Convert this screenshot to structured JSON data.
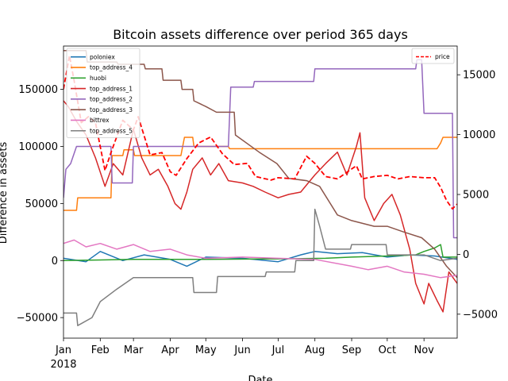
{
  "chart_data": {
    "type": "line",
    "title": "Bitcoin assets difference over period 365 days",
    "xlabel": "Date",
    "ylabel": "Difference in assets",
    "y2label": "",
    "x_range": [
      "2018-01-01",
      "2018-11-29"
    ],
    "ylim": [
      -68000,
      188000
    ],
    "y2lim": [
      -7000,
      17400
    ],
    "grid": false,
    "legend_left_position": "upper-left",
    "legend_right_position": "upper-right",
    "x_ticks": [
      {
        "date": "2018-01-01",
        "label": "Jan",
        "label2": "2018"
      },
      {
        "date": "2018-02-01",
        "label": "Feb",
        "label2": ""
      },
      {
        "date": "2018-03-01",
        "label": "Mar",
        "label2": ""
      },
      {
        "date": "2018-04-01",
        "label": "Apr",
        "label2": ""
      },
      {
        "date": "2018-05-01",
        "label": "May",
        "label2": ""
      },
      {
        "date": "2018-06-01",
        "label": "Jun",
        "label2": ""
      },
      {
        "date": "2018-07-01",
        "label": "Jul",
        "label2": ""
      },
      {
        "date": "2018-08-01",
        "label": "Aug",
        "label2": ""
      },
      {
        "date": "2018-09-01",
        "label": "Sep",
        "label2": ""
      },
      {
        "date": "2018-10-01",
        "label": "Oct",
        "label2": ""
      },
      {
        "date": "2018-11-01",
        "label": "Nov",
        "label2": ""
      }
    ],
    "y_ticks": [
      {
        "value": -50000,
        "label": "−50000"
      },
      {
        "value": 0,
        "label": "0"
      },
      {
        "value": 50000,
        "label": "50000"
      },
      {
        "value": 100000,
        "label": "100000"
      },
      {
        "value": 150000,
        "label": "150000"
      }
    ],
    "y2_ticks": [
      {
        "value": -5000,
        "label": "−5000"
      },
      {
        "value": 0,
        "label": "0"
      },
      {
        "value": 5000,
        "label": "5000"
      },
      {
        "value": 10000,
        "label": "10000"
      },
      {
        "value": 15000,
        "label": "15000"
      }
    ],
    "series": [
      {
        "name": "poloniex",
        "axis": "left",
        "color": "#1f77b4",
        "style": "solid",
        "points": [
          [
            "2018-01-01",
            2000
          ],
          [
            "2018-01-20",
            -1000
          ],
          [
            "2018-02-01",
            8000
          ],
          [
            "2018-02-20",
            0
          ],
          [
            "2018-03-10",
            5000
          ],
          [
            "2018-04-01",
            1000
          ],
          [
            "2018-04-15",
            -5000
          ],
          [
            "2018-05-01",
            3000
          ],
          [
            "2018-06-01",
            2000
          ],
          [
            "2018-07-01",
            -1000
          ],
          [
            "2018-07-20",
            5000
          ],
          [
            "2018-08-01",
            8000
          ],
          [
            "2018-08-20",
            6000
          ],
          [
            "2018-09-10",
            7000
          ],
          [
            "2018-10-01",
            3000
          ],
          [
            "2018-10-20",
            5000
          ],
          [
            "2018-11-10",
            4000
          ],
          [
            "2018-11-29",
            1000
          ]
        ]
      },
      {
        "name": "top_address_4",
        "axis": "left",
        "color": "#ff7f0e",
        "style": "solid",
        "points": [
          [
            "2018-01-01",
            44000
          ],
          [
            "2018-01-12",
            44000
          ],
          [
            "2018-01-13",
            55000
          ],
          [
            "2018-02-10",
            55000
          ],
          [
            "2018-02-11",
            92000
          ],
          [
            "2018-02-20",
            92000
          ],
          [
            "2018-02-21",
            97000
          ],
          [
            "2018-03-01",
            97000
          ],
          [
            "2018-03-02",
            92000
          ],
          [
            "2018-04-10",
            92000
          ],
          [
            "2018-04-13",
            108000
          ],
          [
            "2018-04-20",
            108000
          ],
          [
            "2018-04-21",
            100000
          ],
          [
            "2018-05-20",
            100000
          ],
          [
            "2018-05-21",
            98000
          ],
          [
            "2018-11-12",
            98000
          ],
          [
            "2018-11-15",
            103000
          ],
          [
            "2018-11-17",
            108000
          ],
          [
            "2018-11-29",
            108000
          ]
        ]
      },
      {
        "name": "huobi",
        "axis": "left",
        "color": "#2ca02c",
        "style": "solid",
        "points": [
          [
            "2018-01-01",
            0
          ],
          [
            "2018-03-01",
            1000
          ],
          [
            "2018-05-01",
            1000
          ],
          [
            "2018-07-01",
            1500
          ],
          [
            "2018-08-10",
            2000
          ],
          [
            "2018-09-01",
            3000
          ],
          [
            "2018-10-01",
            4000
          ],
          [
            "2018-10-25",
            5000
          ],
          [
            "2018-11-01",
            8000
          ],
          [
            "2018-11-10",
            11000
          ],
          [
            "2018-11-15",
            14000
          ],
          [
            "2018-11-17",
            3000
          ],
          [
            "2018-11-29",
            3000
          ]
        ]
      },
      {
        "name": "top_address_1",
        "axis": "left",
        "color": "#d62728",
        "style": "solid",
        "points": [
          [
            "2018-01-01",
            140000
          ],
          [
            "2018-01-05",
            135000
          ],
          [
            "2018-01-12",
            122000
          ],
          [
            "2018-01-20",
            110000
          ],
          [
            "2018-01-28",
            90000
          ],
          [
            "2018-02-05",
            65000
          ],
          [
            "2018-02-12",
            85000
          ],
          [
            "2018-02-20",
            75000
          ],
          [
            "2018-03-01",
            115000
          ],
          [
            "2018-03-08",
            90000
          ],
          [
            "2018-03-15",
            75000
          ],
          [
            "2018-03-22",
            80000
          ],
          [
            "2018-03-30",
            65000
          ],
          [
            "2018-04-05",
            50000
          ],
          [
            "2018-04-10",
            45000
          ],
          [
            "2018-04-15",
            60000
          ],
          [
            "2018-04-20",
            80000
          ],
          [
            "2018-04-28",
            90000
          ],
          [
            "2018-05-05",
            75000
          ],
          [
            "2018-05-12",
            85000
          ],
          [
            "2018-05-20",
            70000
          ],
          [
            "2018-06-01",
            68000
          ],
          [
            "2018-06-10",
            65000
          ],
          [
            "2018-06-20",
            60000
          ],
          [
            "2018-07-01",
            55000
          ],
          [
            "2018-07-10",
            58000
          ],
          [
            "2018-07-20",
            60000
          ],
          [
            "2018-08-01",
            75000
          ],
          [
            "2018-08-10",
            85000
          ],
          [
            "2018-08-20",
            95000
          ],
          [
            "2018-08-28",
            75000
          ],
          [
            "2018-09-05",
            100000
          ],
          [
            "2018-09-08",
            112000
          ],
          [
            "2018-09-12",
            55000
          ],
          [
            "2018-09-20",
            35000
          ],
          [
            "2018-09-28",
            50000
          ],
          [
            "2018-10-05",
            58000
          ],
          [
            "2018-10-12",
            40000
          ],
          [
            "2018-10-20",
            10000
          ],
          [
            "2018-10-25",
            -20000
          ],
          [
            "2018-11-01",
            -38000
          ],
          [
            "2018-11-05",
            -20000
          ],
          [
            "2018-11-12",
            -35000
          ],
          [
            "2018-11-17",
            -45000
          ],
          [
            "2018-11-22",
            -10000
          ],
          [
            "2018-11-29",
            -20000
          ]
        ]
      },
      {
        "name": "top_address_2",
        "axis": "left",
        "color": "#9467bd",
        "style": "solid",
        "points": [
          [
            "2018-01-01",
            55000
          ],
          [
            "2018-01-03",
            80000
          ],
          [
            "2018-01-07",
            85000
          ],
          [
            "2018-01-12",
            100000
          ],
          [
            "2018-02-10",
            100000
          ],
          [
            "2018-02-11",
            68000
          ],
          [
            "2018-02-28",
            68000
          ],
          [
            "2018-03-01",
            100000
          ],
          [
            "2018-05-20",
            100000
          ],
          [
            "2018-05-22",
            152000
          ],
          [
            "2018-06-10",
            152000
          ],
          [
            "2018-06-11",
            157000
          ],
          [
            "2018-07-31",
            157000
          ],
          [
            "2018-08-01",
            168000
          ],
          [
            "2018-10-25",
            168000
          ],
          [
            "2018-10-26",
            176000
          ],
          [
            "2018-10-30",
            176000
          ],
          [
            "2018-11-01",
            129000
          ],
          [
            "2018-11-25",
            129000
          ],
          [
            "2018-11-26",
            20000
          ],
          [
            "2018-11-29",
            20000
          ]
        ]
      },
      {
        "name": "top_address_3",
        "axis": "left",
        "color": "#8c564b",
        "style": "solid",
        "points": [
          [
            "2018-01-01",
            184000
          ],
          [
            "2018-01-20",
            184000
          ],
          [
            "2018-01-21",
            174000
          ],
          [
            "2018-02-15",
            174000
          ],
          [
            "2018-02-16",
            172000
          ],
          [
            "2018-03-10",
            172000
          ],
          [
            "2018-03-11",
            168000
          ],
          [
            "2018-03-25",
            168000
          ],
          [
            "2018-03-26",
            158000
          ],
          [
            "2018-04-10",
            158000
          ],
          [
            "2018-04-11",
            150000
          ],
          [
            "2018-04-20",
            150000
          ],
          [
            "2018-04-21",
            140000
          ],
          [
            "2018-05-01",
            135000
          ],
          [
            "2018-05-10",
            130000
          ],
          [
            "2018-05-25",
            130000
          ],
          [
            "2018-05-26",
            110000
          ],
          [
            "2018-06-15",
            95000
          ],
          [
            "2018-06-30",
            85000
          ],
          [
            "2018-07-10",
            72000
          ],
          [
            "2018-07-25",
            70000
          ],
          [
            "2018-08-05",
            65000
          ],
          [
            "2018-08-20",
            40000
          ],
          [
            "2018-09-01",
            35000
          ],
          [
            "2018-09-20",
            30000
          ],
          [
            "2018-10-01",
            30000
          ],
          [
            "2018-10-15",
            25000
          ],
          [
            "2018-10-30",
            20000
          ],
          [
            "2018-11-10",
            10000
          ],
          [
            "2018-11-20",
            -5000
          ],
          [
            "2018-11-29",
            -15000
          ]
        ]
      },
      {
        "name": "bittrex",
        "axis": "left",
        "color": "#e377c2",
        "style": "solid",
        "points": [
          [
            "2018-01-01",
            15000
          ],
          [
            "2018-01-10",
            18000
          ],
          [
            "2018-01-20",
            12000
          ],
          [
            "2018-02-01",
            15000
          ],
          [
            "2018-02-15",
            10000
          ],
          [
            "2018-03-01",
            14000
          ],
          [
            "2018-03-15",
            8000
          ],
          [
            "2018-04-01",
            10000
          ],
          [
            "2018-04-15",
            5000
          ],
          [
            "2018-05-01",
            2000
          ],
          [
            "2018-06-01",
            3000
          ],
          [
            "2018-07-01",
            2000
          ],
          [
            "2018-08-01",
            1000
          ],
          [
            "2018-09-01",
            -5000
          ],
          [
            "2018-09-15",
            -8000
          ],
          [
            "2018-10-01",
            -5000
          ],
          [
            "2018-10-15",
            -10000
          ],
          [
            "2018-11-01",
            -12000
          ],
          [
            "2018-11-15",
            -15000
          ],
          [
            "2018-11-29",
            -13000
          ]
        ]
      },
      {
        "name": "top_address_5",
        "axis": "left",
        "color": "#7f7f7f",
        "style": "solid",
        "points": [
          [
            "2018-01-01",
            -46000
          ],
          [
            "2018-01-12",
            -46000
          ],
          [
            "2018-01-13",
            -57000
          ],
          [
            "2018-01-25",
            -50000
          ],
          [
            "2018-02-01",
            -36000
          ],
          [
            "2018-02-15",
            -25000
          ],
          [
            "2018-03-01",
            -15000
          ],
          [
            "2018-04-20",
            -15000
          ],
          [
            "2018-04-21",
            -28000
          ],
          [
            "2018-05-10",
            -28000
          ],
          [
            "2018-05-11",
            -14000
          ],
          [
            "2018-06-20",
            -14000
          ],
          [
            "2018-06-21",
            -10000
          ],
          [
            "2018-07-15",
            -10000
          ],
          [
            "2018-07-16",
            0
          ],
          [
            "2018-07-31",
            0
          ],
          [
            "2018-08-01",
            45000
          ],
          [
            "2018-08-05",
            30000
          ],
          [
            "2018-08-10",
            10000
          ],
          [
            "2018-08-31",
            10000
          ],
          [
            "2018-09-01",
            14000
          ],
          [
            "2018-09-30",
            14000
          ],
          [
            "2018-10-01",
            5000
          ],
          [
            "2018-11-01",
            5000
          ],
          [
            "2018-11-15",
            0
          ],
          [
            "2018-11-29",
            2000
          ]
        ]
      },
      {
        "name": "price",
        "axis": "right",
        "color": "#ff0000",
        "style": "dashed",
        "points": [
          [
            "2018-01-01",
            13800
          ],
          [
            "2018-01-06",
            16600
          ],
          [
            "2018-01-10",
            14500
          ],
          [
            "2018-01-16",
            11000
          ],
          [
            "2018-01-22",
            11500
          ],
          [
            "2018-01-28",
            11000
          ],
          [
            "2018-02-05",
            7000
          ],
          [
            "2018-02-10",
            8500
          ],
          [
            "2018-02-20",
            11200
          ],
          [
            "2018-03-01",
            10400
          ],
          [
            "2018-03-05",
            11500
          ],
          [
            "2018-03-15",
            8300
          ],
          [
            "2018-03-25",
            8500
          ],
          [
            "2018-04-01",
            6900
          ],
          [
            "2018-04-06",
            6600
          ],
          [
            "2018-04-15",
            8000
          ],
          [
            "2018-04-25",
            9300
          ],
          [
            "2018-05-05",
            9800
          ],
          [
            "2018-05-15",
            8400
          ],
          [
            "2018-05-25",
            7500
          ],
          [
            "2018-06-05",
            7600
          ],
          [
            "2018-06-12",
            6500
          ],
          [
            "2018-06-25",
            6200
          ],
          [
            "2018-07-01",
            6400
          ],
          [
            "2018-07-15",
            6300
          ],
          [
            "2018-07-25",
            8200
          ],
          [
            "2018-08-01",
            7600
          ],
          [
            "2018-08-10",
            6500
          ],
          [
            "2018-08-20",
            6300
          ],
          [
            "2018-08-30",
            7000
          ],
          [
            "2018-09-05",
            7400
          ],
          [
            "2018-09-10",
            6300
          ],
          [
            "2018-09-20",
            6500
          ],
          [
            "2018-10-01",
            6600
          ],
          [
            "2018-10-10",
            6300
          ],
          [
            "2018-10-20",
            6500
          ],
          [
            "2018-11-01",
            6400
          ],
          [
            "2018-11-10",
            6400
          ],
          [
            "2018-11-15",
            5600
          ],
          [
            "2018-11-20",
            4500
          ],
          [
            "2018-11-25",
            3800
          ],
          [
            "2018-11-29",
            4200
          ]
        ]
      }
    ]
  }
}
